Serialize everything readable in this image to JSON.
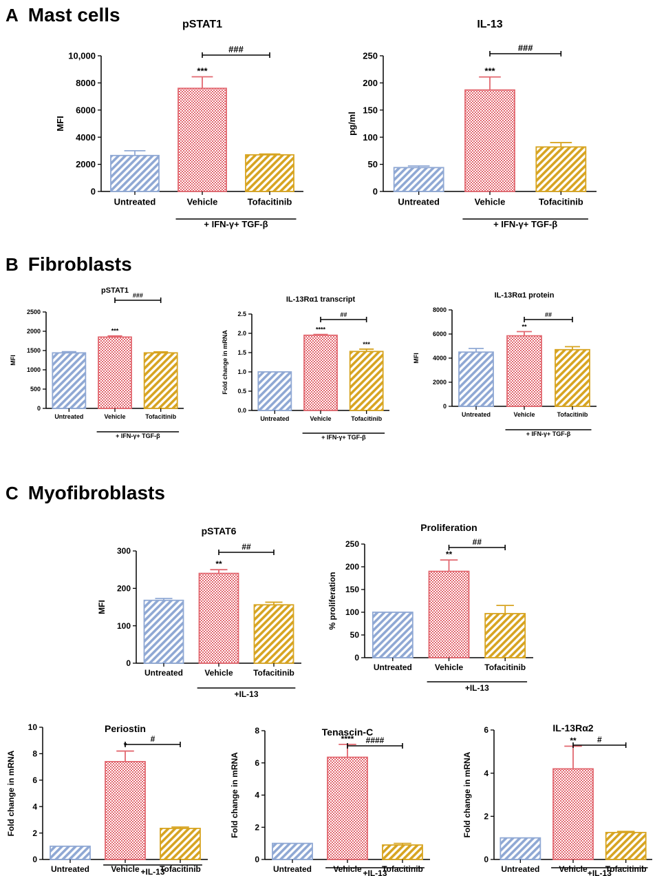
{
  "colors": {
    "untreated": "#8fa8d4",
    "vehicle": "#e2676f",
    "tofacitinib": "#d7a421",
    "axis": "#000000"
  },
  "sections": [
    {
      "letter": "A",
      "title": "Mast cells"
    },
    {
      "letter": "B",
      "title": "Fibroblasts"
    },
    {
      "letter": "C",
      "title": "Myofibroblasts"
    }
  ],
  "chart_data": [
    {
      "type": "bar",
      "section": "A",
      "title": "pSTAT1",
      "ylabel": "MFI",
      "categories": [
        "Untreated",
        "Vehicle",
        "Tofacitinib"
      ],
      "values": [
        2650,
        7600,
        2700
      ],
      "errors": [
        350,
        850,
        60
      ],
      "ylim": [
        0,
        10000
      ],
      "yticks": [
        "0",
        "2000",
        "4000",
        "6000",
        "8000",
        "10,000"
      ],
      "stars": [
        "",
        "***",
        ""
      ],
      "bracket_label": "###",
      "condition": "+ IFN-γ+ TGF-β"
    },
    {
      "type": "bar",
      "section": "A",
      "title": "IL-13",
      "ylabel": "pg/ml",
      "categories": [
        "Untreated",
        "Vehicle",
        "Tofacitinib"
      ],
      "values": [
        44,
        187,
        82
      ],
      "errors": [
        3,
        24,
        8
      ],
      "ylim": [
        0,
        250
      ],
      "yticks": [
        "0",
        "50",
        "100",
        "150",
        "200",
        "250"
      ],
      "stars": [
        "",
        "***",
        ""
      ],
      "bracket_label": "###",
      "condition": "+ IFN-γ+ TGF-β"
    },
    {
      "type": "bar",
      "section": "B",
      "title": "pSTAT1",
      "ylabel": "MFI",
      "categories": [
        "Untreated",
        "Vehicle",
        "Tofacitinib"
      ],
      "values": [
        1440,
        1850,
        1440
      ],
      "errors": [
        30,
        30,
        25
      ],
      "ylim": [
        0,
        2500
      ],
      "yticks": [
        "0",
        "500",
        "1000",
        "1500",
        "2000",
        "2500"
      ],
      "stars": [
        "",
        "***",
        ""
      ],
      "bracket_label": "###",
      "condition": "+ IFN-γ+ TGF-β"
    },
    {
      "type": "bar",
      "section": "B",
      "title": "IL-13Rα1 transcript",
      "ylabel": "Fold change in mRNA",
      "categories": [
        "Untreated",
        "Vehicle",
        "Tofacitinib"
      ],
      "values": [
        1.0,
        1.95,
        1.53
      ],
      "errors": [
        0,
        0.02,
        0.06
      ],
      "ylim": [
        0,
        2.5
      ],
      "yticks": [
        "0.0",
        "0.5",
        "1.0",
        "1.5",
        "2.0",
        "2.5"
      ],
      "stars": [
        "",
        "****",
        "***"
      ],
      "bracket_label": "##",
      "condition": "+ IFN-γ+ TGF-β"
    },
    {
      "type": "bar",
      "section": "B",
      "title": "IL-13Rα1 protein",
      "ylabel": "MFI",
      "categories": [
        "Untreated",
        "Vehicle",
        "Tofacitinib"
      ],
      "values": [
        4500,
        5850,
        4700
      ],
      "errors": [
        300,
        350,
        250
      ],
      "ylim": [
        0,
        8000
      ],
      "yticks": [
        "0",
        "2000",
        "4000",
        "6000",
        "8000"
      ],
      "stars": [
        "",
        "**",
        ""
      ],
      "bracket_label": "##",
      "condition": "+ IFN-γ+ TGF-β"
    },
    {
      "type": "bar",
      "section": "C",
      "title": "pSTAT6",
      "ylabel": "MFI",
      "categories": [
        "Untreated",
        "Vehicle",
        "Tofacitinib"
      ],
      "values": [
        168,
        240,
        156
      ],
      "errors": [
        5,
        10,
        7
      ],
      "ylim": [
        0,
        300
      ],
      "yticks": [
        "0",
        "100",
        "200",
        "300"
      ],
      "stars": [
        "",
        "**",
        ""
      ],
      "bracket_label": "##",
      "condition": "+IL-13"
    },
    {
      "type": "bar",
      "section": "C",
      "title": "Proliferation",
      "ylabel": "% proliferation",
      "categories": [
        "Untreated",
        "Vehicle",
        "Tofacitinib"
      ],
      "values": [
        100,
        190,
        97
      ],
      "errors": [
        0,
        25,
        18
      ],
      "ylim": [
        0,
        250
      ],
      "yticks": [
        "0",
        "50",
        "100",
        "150",
        "200",
        "250"
      ],
      "stars": [
        "",
        "**",
        ""
      ],
      "bracket_label": "##",
      "condition": "+IL-13"
    },
    {
      "type": "bar",
      "section": "C",
      "title": "Periostin",
      "ylabel": "Fold change in mRNA",
      "categories": [
        "Untreated",
        "Vehicle",
        "Tofacitinib"
      ],
      "values": [
        1.0,
        7.4,
        2.35
      ],
      "errors": [
        0,
        0.8,
        0.1
      ],
      "ylim": [
        0,
        10
      ],
      "yticks": [
        "0",
        "2",
        "4",
        "6",
        "8",
        "10"
      ],
      "stars": [
        "",
        "*",
        ""
      ],
      "bracket_label": "#",
      "condition": "+IL-13"
    },
    {
      "type": "bar",
      "section": "C",
      "title": "Tenascin-C",
      "ylabel": "Fold change in mRNA",
      "categories": [
        "Untreated",
        "Vehicle",
        "Tofacitinib"
      ],
      "values": [
        1.0,
        6.35,
        0.9
      ],
      "errors": [
        0,
        0.8,
        0.1
      ],
      "ylim": [
        0,
        8
      ],
      "yticks": [
        "0",
        "2",
        "4",
        "6",
        "8"
      ],
      "stars": [
        "",
        "****",
        ""
      ],
      "bracket_label": "####",
      "condition": "+IL-13"
    },
    {
      "type": "bar",
      "section": "C",
      "title": "IL-13Rα2",
      "ylabel": "Fold change in mRNA",
      "categories": [
        "Untreated",
        "Vehicle",
        "Tofacitinib"
      ],
      "values": [
        1.0,
        4.2,
        1.25
      ],
      "errors": [
        0,
        1.05,
        0.05
      ],
      "ylim": [
        0,
        6
      ],
      "yticks": [
        "0",
        "2",
        "4",
        "6"
      ],
      "stars": [
        "",
        "**",
        ""
      ],
      "bracket_label": "#",
      "condition": "+IL-13"
    }
  ]
}
